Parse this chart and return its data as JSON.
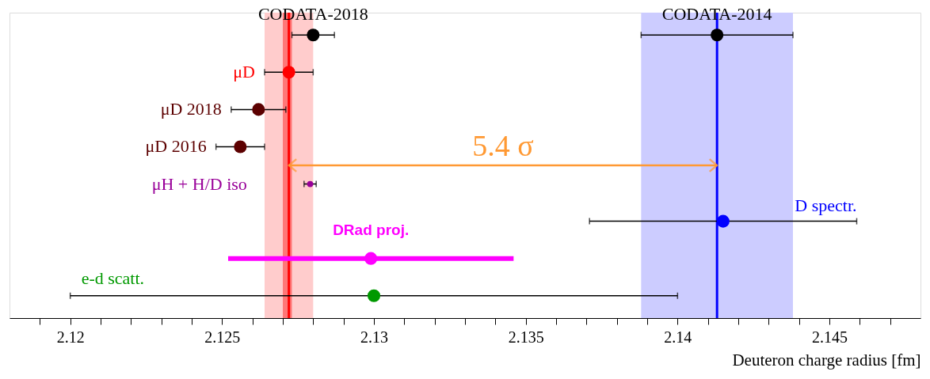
{
  "chart_data": {
    "type": "scatter",
    "orientation": "horizontal",
    "xlabel": "Deuteron charge radius [fm]",
    "categories": [
      null,
      null,
      null,
      null,
      null,
      null,
      null,
      null
    ],
    "series": [
      {
        "name": "CODATA-2018",
        "color": "#000000",
        "values": [
          2.128,
          null,
          null,
          null,
          null,
          null,
          null,
          null
        ],
        "errors": [
          0.0007,
          null,
          null,
          null,
          null,
          null,
          null,
          null
        ]
      },
      {
        "name": "CODATA-2014",
        "color": "#000000",
        "values": [
          2.1413,
          null,
          null,
          null,
          null,
          null,
          null,
          null
        ],
        "errors": [
          0.0025,
          null,
          null,
          null,
          null,
          null,
          null,
          null
        ]
      },
      {
        "name": "μD",
        "color": "#ff0000",
        "values": [
          null,
          2.1272,
          null,
          null,
          null,
          null,
          null,
          null
        ],
        "errors": [
          null,
          0.0008,
          null,
          null,
          null,
          null,
          null,
          null
        ]
      },
      {
        "name": "μD 2018",
        "color": "#5c0000",
        "values": [
          null,
          null,
          2.1262,
          null,
          null,
          null,
          null,
          null
        ],
        "errors": [
          null,
          null,
          0.0009,
          null,
          null,
          null,
          null,
          null
        ]
      },
      {
        "name": "μD 2016",
        "color": "#5c0000",
        "values": [
          null,
          null,
          null,
          2.1256,
          null,
          null,
          null,
          null
        ],
        "errors": [
          null,
          null,
          null,
          0.0008,
          null,
          null,
          null,
          null
        ]
      },
      {
        "name": "μH + H/D iso",
        "color": "#990099",
        "values": [
          null,
          null,
          null,
          null,
          2.1279,
          null,
          null,
          null
        ],
        "errors": [
          null,
          null,
          null,
          null,
          0.0002,
          null,
          null,
          null
        ]
      },
      {
        "name": "D spectr.",
        "color": "#0000ff",
        "values": [
          null,
          null,
          null,
          null,
          null,
          2.1415,
          null,
          null
        ],
        "errors": [
          null,
          null,
          null,
          null,
          null,
          0.0044,
          null,
          null
        ]
      },
      {
        "name": "DRad proj.",
        "color": "#ff00ff",
        "values": [
          null,
          null,
          null,
          null,
          null,
          null,
          2.1299,
          null
        ],
        "errors": [
          null,
          null,
          null,
          null,
          null,
          null,
          0.0047,
          null
        ]
      },
      {
        "name": "e-d scatt.",
        "color": "#009900",
        "values": [
          null,
          null,
          null,
          null,
          null,
          null,
          null,
          2.13
        ],
        "errors": [
          null,
          null,
          null,
          null,
          null,
          null,
          null,
          0.01
        ]
      }
    ],
    "xlim": [
      2.118,
      2.148
    ],
    "xticks": [
      {
        "value": 2.119,
        "label": null
      },
      2.12,
      {
        "value": 2.121,
        "label": null
      },
      {
        "value": 2.122,
        "label": null
      },
      {
        "value": 2.123,
        "label": null
      },
      {
        "value": 2.124,
        "label": null
      },
      2.125,
      {
        "value": 2.126,
        "label": null
      },
      {
        "value": 2.127,
        "label": null
      },
      {
        "value": 2.128,
        "label": null
      },
      {
        "value": 2.129,
        "label": null
      },
      2.13,
      {
        "value": 2.131,
        "label": null
      },
      {
        "value": 2.132,
        "label": null
      },
      {
        "value": 2.133,
        "label": null
      },
      {
        "value": 2.134,
        "label": null
      },
      2.135,
      {
        "value": 2.136,
        "label": null
      },
      {
        "value": 2.137,
        "label": null
      },
      {
        "value": 2.138,
        "label": null
      },
      {
        "value": 2.139,
        "label": null
      },
      2.14,
      {
        "value": 2.141,
        "label": null
      },
      {
        "value": 2.142,
        "label": null
      },
      {
        "value": 2.143,
        "label": null
      },
      {
        "value": 2.144,
        "label": null
      },
      2.145,
      {
        "value": 2.146,
        "label": null
      },
      {
        "value": 2.147,
        "label": null
      }
    ],
    "bands": [
      {
        "axis": "x",
        "from": 2.1264,
        "to": 2.128,
        "color": "#ffcccc"
      },
      {
        "axis": "x",
        "from": 2.127,
        "to": 2.1273,
        "color": "#ff7777"
      },
      {
        "axis": "x",
        "from": 2.1388,
        "to": 2.1438,
        "color": "#ccccff"
      }
    ],
    "ref_lines": [
      {
        "axis": "x",
        "value": 2.1272,
        "color": "#ff0000"
      },
      {
        "axis": "x",
        "value": 2.1413,
        "color": "#0000ff"
      }
    ],
    "annotations": [
      "5.4 σ"
    ],
    "grid": false,
    "marker": "circle"
  }
}
